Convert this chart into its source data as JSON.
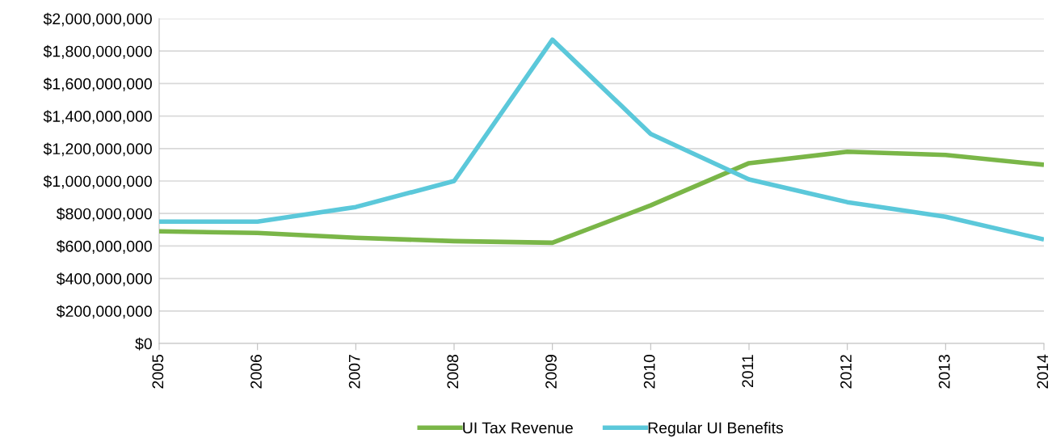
{
  "chart_data": {
    "type": "line",
    "categories": [
      "2005",
      "2006",
      "2007",
      "2008",
      "2009",
      "2010",
      "2011",
      "2012",
      "2013",
      "2014"
    ],
    "series": [
      {
        "name": "UI Tax Revenue",
        "color": "#7ab648",
        "values": [
          690000000,
          680000000,
          650000000,
          630000000,
          620000000,
          850000000,
          1110000000,
          1180000000,
          1160000000,
          1100000000
        ]
      },
      {
        "name": "Regular UI Benefits",
        "color": "#5bc8da",
        "values": [
          750000000,
          750000000,
          840000000,
          1000000000,
          1870000000,
          1290000000,
          1010000000,
          870000000,
          780000000,
          640000000
        ]
      }
    ],
    "ylim": [
      0,
      2000000000
    ],
    "yticks": [
      {
        "value": 0,
        "label": "$0"
      },
      {
        "value": 200000000,
        "label": "$200,000,000"
      },
      {
        "value": 400000000,
        "label": "$400,000,000"
      },
      {
        "value": 600000000,
        "label": "$600,000,000"
      },
      {
        "value": 800000000,
        "label": "$800,000,000"
      },
      {
        "value": 1000000000,
        "label": "$1,000,000,000"
      },
      {
        "value": 1200000000,
        "label": "$1,200,000,000"
      },
      {
        "value": 1400000000,
        "label": "$1,400,000,000"
      },
      {
        "value": 1600000000,
        "label": "$1,600,000,000"
      },
      {
        "value": 1800000000,
        "label": "$1,800,000,000"
      },
      {
        "value": 2000000000,
        "label": "$2,000,000,000"
      }
    ],
    "grid": "y",
    "legend": "bottom",
    "marker": "none",
    "line_style": "solid"
  }
}
